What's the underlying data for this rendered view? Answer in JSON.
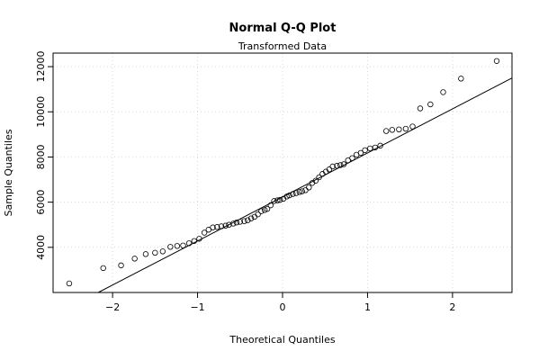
{
  "chart_data": {
    "type": "scatter",
    "title": "Normal Q-Q Plot",
    "subtitle": "Transformed Data",
    "xlabel": "Theoretical Quantiles",
    "ylabel": "Sample Quantiles",
    "xlim": [
      -2.7,
      2.7
    ],
    "ylim": [
      2000,
      12600
    ],
    "x_ticks": [
      -2,
      -1,
      0,
      1,
      2
    ],
    "y_ticks": [
      4000,
      6000,
      8000,
      10000,
      12000
    ],
    "grid": true,
    "reference_line": {
      "intercept": 6230,
      "slope": 1950
    },
    "points": [
      [
        -2.51,
        2400
      ],
      [
        -2.11,
        3080
      ],
      [
        -1.9,
        3200
      ],
      [
        -1.74,
        3500
      ],
      [
        -1.61,
        3700
      ],
      [
        -1.5,
        3760
      ],
      [
        -1.41,
        3820
      ],
      [
        -1.32,
        4020
      ],
      [
        -1.24,
        4060
      ],
      [
        -1.17,
        4080
      ],
      [
        -1.1,
        4180
      ],
      [
        -1.04,
        4280
      ],
      [
        -0.98,
        4380
      ],
      [
        -0.92,
        4650
      ],
      [
        -0.87,
        4780
      ],
      [
        -0.82,
        4880
      ],
      [
        -0.77,
        4900
      ],
      [
        -0.72,
        4930
      ],
      [
        -0.67,
        4960
      ],
      [
        -0.63,
        5000
      ],
      [
        -0.58,
        5050
      ],
      [
        -0.54,
        5100
      ],
      [
        -0.5,
        5130
      ],
      [
        -0.45,
        5160
      ],
      [
        -0.41,
        5200
      ],
      [
        -0.37,
        5280
      ],
      [
        -0.33,
        5350
      ],
      [
        -0.29,
        5460
      ],
      [
        -0.25,
        5600
      ],
      [
        -0.21,
        5650
      ],
      [
        -0.18,
        5700
      ],
      [
        -0.14,
        5860
      ],
      [
        -0.1,
        6050
      ],
      [
        -0.06,
        6080
      ],
      [
        -0.03,
        6100
      ],
      [
        0.01,
        6150
      ],
      [
        0.05,
        6250
      ],
      [
        0.08,
        6300
      ],
      [
        0.12,
        6360
      ],
      [
        0.16,
        6400
      ],
      [
        0.2,
        6450
      ],
      [
        0.23,
        6480
      ],
      [
        0.27,
        6530
      ],
      [
        0.31,
        6650
      ],
      [
        0.35,
        6850
      ],
      [
        0.39,
        6950
      ],
      [
        0.43,
        7100
      ],
      [
        0.47,
        7250
      ],
      [
        0.51,
        7350
      ],
      [
        0.55,
        7450
      ],
      [
        0.59,
        7580
      ],
      [
        0.64,
        7610
      ],
      [
        0.68,
        7640
      ],
      [
        0.72,
        7680
      ],
      [
        0.77,
        7850
      ],
      [
        0.82,
        7950
      ],
      [
        0.87,
        8100
      ],
      [
        0.92,
        8180
      ],
      [
        0.97,
        8300
      ],
      [
        1.03,
        8380
      ],
      [
        1.09,
        8420
      ],
      [
        1.15,
        8500
      ],
      [
        1.22,
        9150
      ],
      [
        1.29,
        9200
      ],
      [
        1.37,
        9220
      ],
      [
        1.45,
        9250
      ],
      [
        1.53,
        9350
      ],
      [
        1.62,
        10150
      ],
      [
        1.74,
        10330
      ],
      [
        1.89,
        10870
      ],
      [
        2.1,
        11470
      ],
      [
        2.52,
        12250
      ]
    ]
  }
}
